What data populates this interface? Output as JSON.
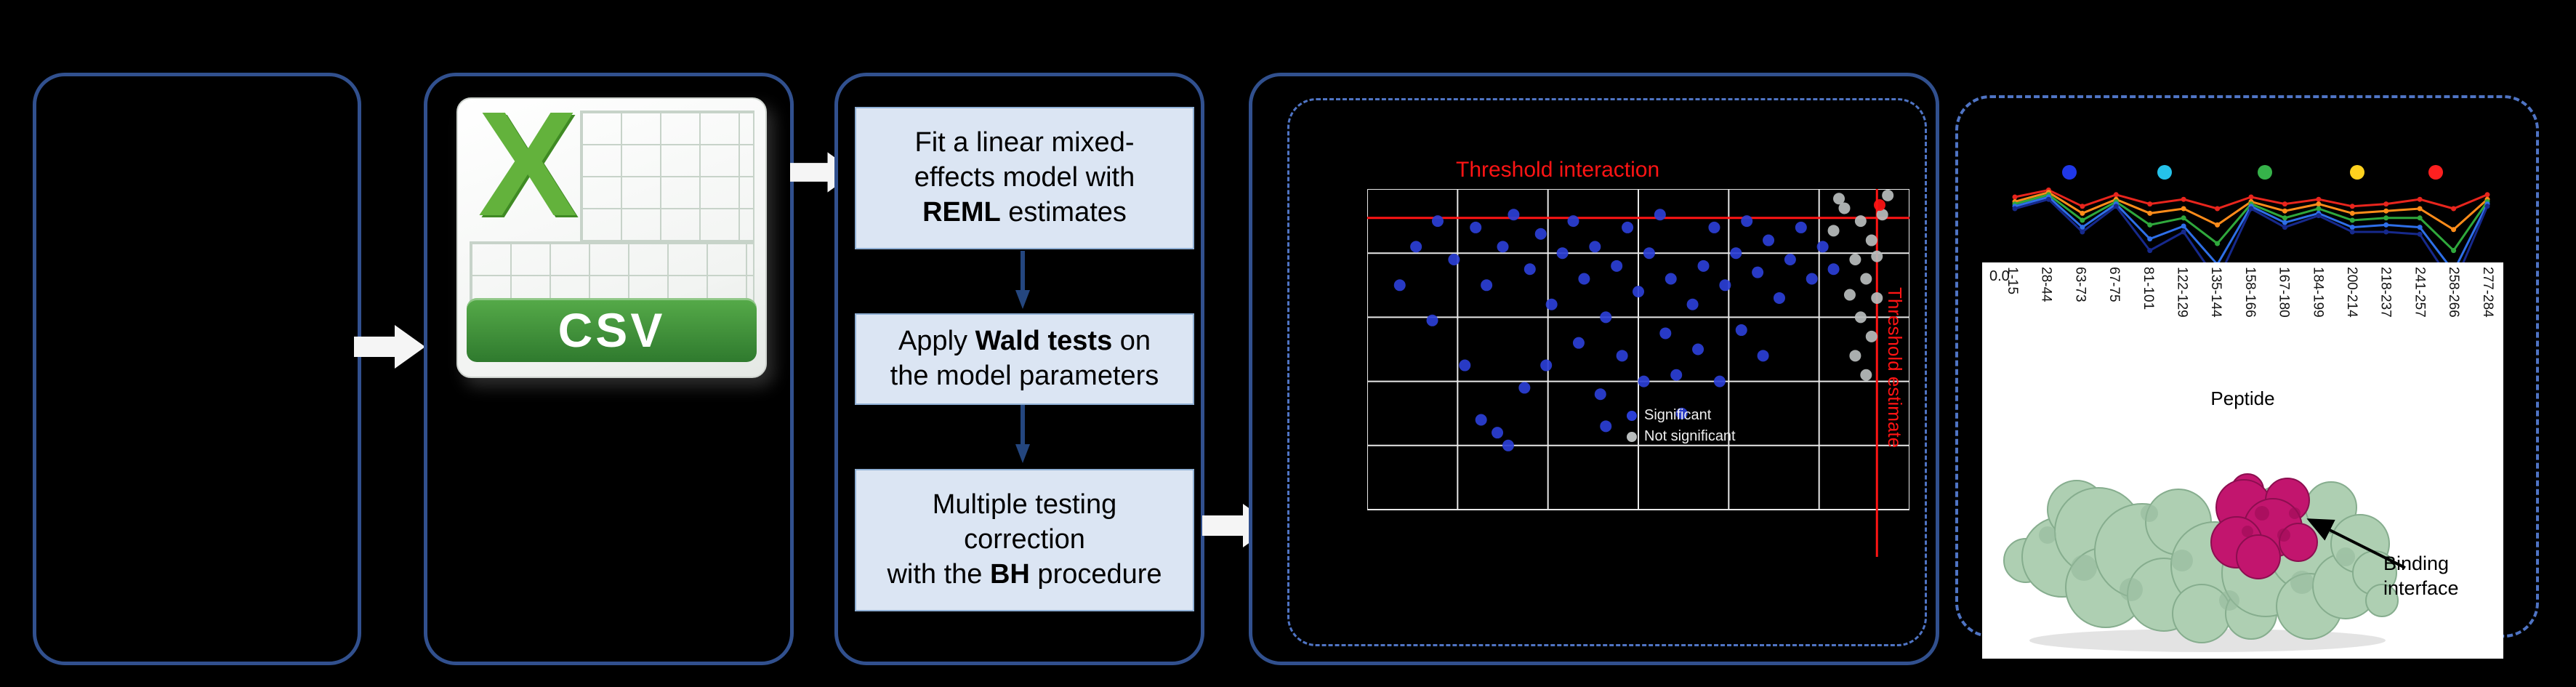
{
  "csv": {
    "logo_letter": "X",
    "banner": "CSV"
  },
  "pipeline": {
    "steps": [
      {
        "lines": [
          [
            [
              "Fit a linear mixed-",
              false
            ]
          ],
          [
            [
              "effects model with",
              false
            ]
          ],
          [
            [
              "REML",
              true
            ],
            [
              " estimates",
              false
            ]
          ]
        ]
      },
      {
        "lines": [
          [
            [
              "Apply ",
              false
            ],
            [
              "Wald tests",
              true
            ],
            [
              " on",
              false
            ]
          ],
          [
            [
              "the model parameters",
              false
            ]
          ]
        ]
      },
      {
        "lines": [
          [
            [
              "Multiple testing",
              false
            ]
          ],
          [
            [
              "correction",
              false
            ]
          ],
          [
            [
              "with the ",
              false
            ],
            [
              "BH",
              true
            ],
            [
              " procedure",
              false
            ]
          ]
        ]
      }
    ]
  },
  "scatter": {
    "title": "Threshold interaction",
    "side_label": "Threshold estimate",
    "h_threshold": 0.09,
    "v_threshold": 0.94,
    "grid": {
      "cols": 6,
      "rows": 5
    },
    "colors": {
      "blue": "#2b3fd6",
      "gray": "#b9bdbd",
      "red": "#ff1414",
      "threshold": "#ff1414",
      "grid": "#e8e8e8"
    },
    "legend": [
      {
        "label": "Significant",
        "color": "#2b3fd6"
      },
      {
        "label": "Not significant",
        "color": "#b9bdbd"
      }
    ],
    "points_blue": [
      [
        0.06,
        0.3
      ],
      [
        0.09,
        0.18
      ],
      [
        0.12,
        0.41
      ],
      [
        0.13,
        0.1
      ],
      [
        0.16,
        0.22
      ],
      [
        0.18,
        0.55
      ],
      [
        0.2,
        0.12
      ],
      [
        0.21,
        0.72
      ],
      [
        0.22,
        0.3
      ],
      [
        0.24,
        0.76
      ],
      [
        0.25,
        0.18
      ],
      [
        0.26,
        0.8
      ],
      [
        0.27,
        0.08
      ],
      [
        0.29,
        0.62
      ],
      [
        0.3,
        0.25
      ],
      [
        0.32,
        0.14
      ],
      [
        0.33,
        0.55
      ],
      [
        0.34,
        0.36
      ],
      [
        0.36,
        0.2
      ],
      [
        0.38,
        0.1
      ],
      [
        0.39,
        0.48
      ],
      [
        0.4,
        0.28
      ],
      [
        0.42,
        0.18
      ],
      [
        0.43,
        0.64
      ],
      [
        0.44,
        0.4
      ],
      [
        0.46,
        0.24
      ],
      [
        0.47,
        0.52
      ],
      [
        0.48,
        0.12
      ],
      [
        0.5,
        0.32
      ],
      [
        0.51,
        0.6
      ],
      [
        0.52,
        0.2
      ],
      [
        0.54,
        0.08
      ],
      [
        0.55,
        0.45
      ],
      [
        0.56,
        0.28
      ],
      [
        0.57,
        0.58
      ],
      [
        0.58,
        0.7
      ],
      [
        0.6,
        0.36
      ],
      [
        0.61,
        0.5
      ],
      [
        0.62,
        0.24
      ],
      [
        0.64,
        0.12
      ],
      [
        0.65,
        0.6
      ],
      [
        0.66,
        0.3
      ],
      [
        0.68,
        0.2
      ],
      [
        0.69,
        0.44
      ],
      [
        0.7,
        0.1
      ],
      [
        0.72,
        0.26
      ],
      [
        0.73,
        0.52
      ],
      [
        0.74,
        0.16
      ],
      [
        0.76,
        0.34
      ],
      [
        0.78,
        0.22
      ],
      [
        0.8,
        0.12
      ],
      [
        0.82,
        0.28
      ],
      [
        0.84,
        0.18
      ],
      [
        0.86,
        0.25
      ],
      [
        0.44,
        0.74
      ]
    ],
    "points_gray": [
      [
        0.86,
        0.13
      ],
      [
        0.88,
        0.06
      ],
      [
        0.89,
        0.33
      ],
      [
        0.9,
        0.22
      ],
      [
        0.9,
        0.52
      ],
      [
        0.91,
        0.1
      ],
      [
        0.91,
        0.4
      ],
      [
        0.92,
        0.28
      ],
      [
        0.92,
        0.58
      ],
      [
        0.93,
        0.16
      ],
      [
        0.93,
        0.46
      ],
      [
        0.94,
        0.34
      ],
      [
        0.95,
        0.08
      ],
      [
        0.96,
        0.02
      ],
      [
        0.87,
        0.03
      ],
      [
        0.94,
        0.21
      ]
    ],
    "points_red": [
      [
        0.945,
        0.05
      ]
    ]
  },
  "uptake_chart": {
    "legend_dot_colors": [
      "#2038e8",
      "#25c2ea",
      "#36b24a",
      "#ffd21e",
      "#ff2020"
    ],
    "legend_dot_x": [
      120,
      251,
      389,
      516,
      624
    ],
    "categories": [
      "1-15",
      "28-44",
      "63-73",
      "67-75",
      "81-101",
      "122-129",
      "135-144",
      "158-166",
      "167-180",
      "184-199",
      "200-214",
      "218-237",
      "241-257",
      "258-266",
      "277-284"
    ],
    "series": [
      {
        "color": "#e8251d",
        "values": [
          0.8,
          0.86,
          0.72,
          0.82,
          0.74,
          0.78,
          0.7,
          0.8,
          0.74,
          0.78,
          0.72,
          0.74,
          0.78,
          0.7,
          0.82
        ]
      },
      {
        "color": "#ff8c1a",
        "values": [
          0.76,
          0.84,
          0.66,
          0.78,
          0.66,
          0.7,
          0.56,
          0.76,
          0.68,
          0.74,
          0.66,
          0.68,
          0.7,
          0.52,
          0.78
        ]
      },
      {
        "color": "#2fa83c",
        "values": [
          0.74,
          0.82,
          0.6,
          0.76,
          0.56,
          0.62,
          0.4,
          0.74,
          0.62,
          0.7,
          0.6,
          0.62,
          0.62,
          0.34,
          0.76
        ]
      },
      {
        "color": "#2e6fe8",
        "values": [
          0.72,
          0.8,
          0.54,
          0.74,
          0.44,
          0.55,
          0.22,
          0.72,
          0.58,
          0.66,
          0.54,
          0.56,
          0.54,
          0.16,
          0.74
        ]
      },
      {
        "color": "#16298c",
        "values": [
          0.7,
          0.78,
          0.5,
          0.72,
          0.34,
          0.5,
          0.08,
          0.7,
          0.54,
          0.64,
          0.5,
          0.5,
          0.48,
          0.04,
          0.72
        ]
      }
    ],
    "y_tick_label": "0.0",
    "x_axis_label": "Peptide"
  },
  "binding_label": {
    "lines": [
      "Binding",
      "interface"
    ]
  }
}
